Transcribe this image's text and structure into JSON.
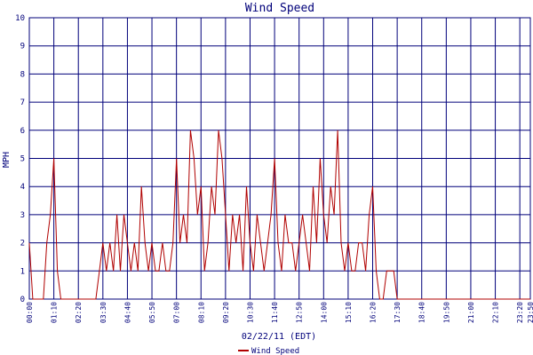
{
  "chart_data": {
    "type": "line",
    "title": "Wind Speed",
    "xlabel": "02/22/11 (EDT)",
    "ylabel": "MPH",
    "ylim": [
      0,
      10
    ],
    "yticks": [
      "0",
      "1",
      "2",
      "3",
      "4",
      "5",
      "6",
      "7",
      "8",
      "9",
      "10"
    ],
    "xlim_minutes": [
      0,
      1430
    ],
    "xticks": [
      "00:00",
      "01:10",
      "02:20",
      "03:30",
      "04:40",
      "05:50",
      "07:00",
      "08:10",
      "09:20",
      "10:30",
      "11:40",
      "12:50",
      "14:00",
      "15:10",
      "16:20",
      "17:30",
      "18:40",
      "19:50",
      "21:00",
      "22:10",
      "23:20",
      "23:50"
    ],
    "grid": true,
    "legend_position": "bottom-center",
    "colors": {
      "series": "#b00000",
      "grid": "#00007a",
      "text": "#00007a"
    },
    "series": [
      {
        "name": "Wind Speed",
        "x": [
          "00:00",
          "00:10",
          "00:20",
          "00:30",
          "00:40",
          "00:50",
          "01:00",
          "01:10",
          "01:20",
          "01:30",
          "01:40",
          "01:50",
          "02:00",
          "02:10",
          "02:20",
          "02:30",
          "02:40",
          "02:50",
          "03:00",
          "03:10",
          "03:20",
          "03:30",
          "03:40",
          "03:50",
          "04:00",
          "04:10",
          "04:20",
          "04:30",
          "04:40",
          "04:50",
          "05:00",
          "05:10",
          "05:20",
          "05:30",
          "05:40",
          "05:50",
          "06:00",
          "06:10",
          "06:20",
          "06:30",
          "06:40",
          "06:50",
          "07:00",
          "07:10",
          "07:20",
          "07:30",
          "07:40",
          "07:50",
          "08:00",
          "08:10",
          "08:20",
          "08:30",
          "08:40",
          "08:50",
          "09:00",
          "09:10",
          "09:20",
          "09:30",
          "09:40",
          "09:50",
          "10:00",
          "10:10",
          "10:20",
          "10:30",
          "10:40",
          "10:50",
          "11:00",
          "11:10",
          "11:20",
          "11:30",
          "11:40",
          "11:50",
          "12:00",
          "12:10",
          "12:20",
          "12:30",
          "12:40",
          "12:50",
          "13:00",
          "13:10",
          "13:20",
          "13:30",
          "13:40",
          "13:50",
          "14:00",
          "14:10",
          "14:20",
          "14:30",
          "14:40",
          "14:50",
          "15:00",
          "15:10",
          "15:20",
          "15:30",
          "15:40",
          "15:50",
          "16:00",
          "16:10",
          "16:20",
          "16:30",
          "16:40",
          "16:50",
          "17:00",
          "17:10",
          "17:20",
          "17:30",
          "17:40",
          "17:50",
          "18:00",
          "18:30",
          "19:00",
          "19:30",
          "20:00",
          "20:30",
          "21:00",
          "21:30",
          "22:00",
          "22:30",
          "23:00",
          "23:30",
          "23:50"
        ],
        "values": [
          2,
          0,
          0,
          0,
          0,
          2,
          3,
          5,
          1,
          0,
          0,
          0,
          0,
          0,
          0,
          0,
          0,
          0,
          0,
          0,
          1,
          2,
          1,
          2,
          1,
          3,
          1,
          3,
          2,
          1,
          2,
          1,
          4,
          2,
          1,
          2,
          1,
          1,
          2,
          1,
          1,
          2,
          5,
          2,
          3,
          2,
          6,
          5,
          3,
          4,
          1,
          2,
          4,
          3,
          6,
          5,
          3,
          1,
          3,
          2,
          3,
          1,
          4,
          2,
          1,
          3,
          2,
          1,
          2,
          3,
          5,
          2,
          1,
          3,
          2,
          2,
          1,
          2,
          3,
          2,
          1,
          4,
          2,
          5,
          3,
          2,
          4,
          3,
          6,
          2,
          1,
          2,
          1,
          1,
          2,
          2,
          1,
          3,
          4,
          1,
          0,
          0,
          1,
          1,
          1,
          0,
          0,
          0,
          0,
          0,
          0,
          0,
          0,
          0,
          0,
          0,
          0,
          0,
          0,
          0,
          0
        ]
      }
    ]
  }
}
